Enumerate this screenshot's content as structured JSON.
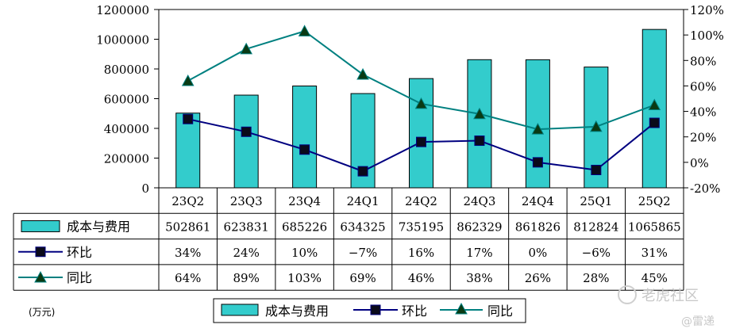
{
  "chart_data": {
    "type": "bar",
    "categories": [
      "23Q2",
      "23Q3",
      "23Q4",
      "24Q1",
      "24Q2",
      "24Q3",
      "24Q4",
      "25Q1",
      "25Q2"
    ],
    "series": [
      {
        "name": "成本与费用",
        "kind": "bar",
        "axis": "left",
        "color": "#33CCCC",
        "values": [
          502861,
          623831,
          685226,
          634325,
          735195,
          862329,
          861826,
          812824,
          1065865
        ]
      },
      {
        "name": "环比",
        "kind": "line",
        "axis": "right",
        "color": "#000080",
        "marker": "square",
        "values": [
          34,
          24,
          10,
          -7,
          16,
          17,
          0,
          -6,
          31
        ]
      },
      {
        "name": "同比",
        "kind": "line",
        "axis": "right",
        "color": "#008080",
        "marker": "triangle",
        "values": [
          64,
          89,
          103,
          69,
          46,
          38,
          26,
          28,
          45
        ]
      }
    ],
    "ylim_left": [
      0,
      1200000
    ],
    "yticks_left": [
      "0",
      "200000",
      "400000",
      "600000",
      "800000",
      "1000000",
      "1200000"
    ],
    "ylim_right": [
      -20,
      120
    ],
    "yticks_right": [
      "-20%",
      "0%",
      "20%",
      "40%",
      "60%",
      "80%",
      "100%",
      "120%"
    ],
    "table_rows": [
      {
        "label": "成本与费用",
        "cells": [
          "502861",
          "623831",
          "685226",
          "634325",
          "735195",
          "862329",
          "861826",
          "812824",
          "1065865"
        ]
      },
      {
        "label": "环比",
        "cells": [
          "34%",
          "24%",
          "10%",
          "−7%",
          "16%",
          "17%",
          "0%",
          "−6%",
          "31%"
        ]
      },
      {
        "label": "同比",
        "cells": [
          "64%",
          "89%",
          "103%",
          "69%",
          "46%",
          "38%",
          "26%",
          "28%",
          "45%"
        ]
      }
    ],
    "unit_label": "(万元)",
    "legend": [
      "成本与费用",
      "环比",
      "同比"
    ],
    "legend_position": "bottom",
    "grid": false
  },
  "watermark": {
    "main": "老虎社区",
    "sub": "@雷递"
  }
}
